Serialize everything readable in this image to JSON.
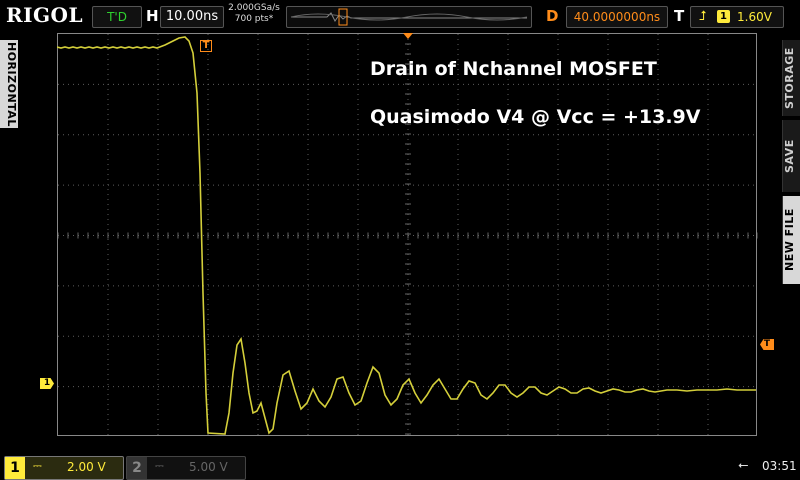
{
  "topbar": {
    "logo": "RIGOL",
    "run_status": "T'D",
    "horizontal_label": "H",
    "horizontal_scale": "10.00ns",
    "sample_rate": "2.000GSa/s",
    "memory_depth": "700 pts*",
    "delay_label": "D",
    "delay_value": "40.0000000ns",
    "trigger_label": "T",
    "trigger_edge_icon": "rising-edge-icon",
    "trigger_source": "1",
    "trigger_level": "1.60V"
  },
  "side_tabs": {
    "left": "HORIZONTAL",
    "right": [
      "STORAGE",
      "SAVE",
      "NEW FILE"
    ]
  },
  "annotations": {
    "line1": "Drain of Nchannel MOSFET",
    "line2": "Quasimodo V4 @ Vcc = +13.9V"
  },
  "markers": {
    "ch1": "1",
    "trigger_level": "T",
    "trigger_position": "T"
  },
  "channels": [
    {
      "number": "1",
      "coupling": "⎓",
      "scale": "2.00 V",
      "active": true,
      "color": "#ffeb3b"
    },
    {
      "number": "2",
      "coupling": "⎓",
      "scale": "5.00 V",
      "active": false,
      "color": "#666666"
    }
  ],
  "status": {
    "usb_icon": "usb-icon",
    "time": "03:51"
  },
  "colors": {
    "trace": "#d4cf3a",
    "trigger": "#ff8c1a",
    "grid": "#6a6a6a"
  }
}
